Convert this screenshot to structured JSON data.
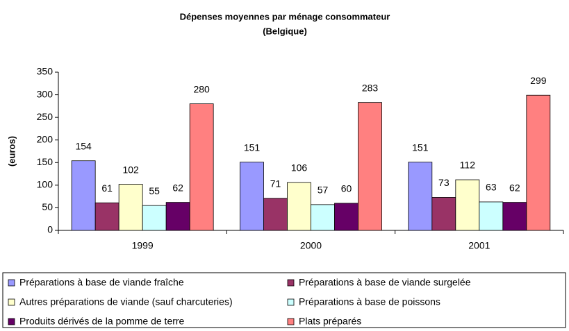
{
  "chart_data": {
    "type": "bar",
    "title": "Dépenses moyennes par ménage consommateur",
    "subtitle": "(Belgique)",
    "y_label": "(euros)",
    "categories": [
      "1999",
      "2000",
      "2001"
    ],
    "series": [
      {
        "name": "Préparations à base de viande fraîche",
        "color": "#9999ff",
        "values": [
          154,
          151,
          151
        ]
      },
      {
        "name": "Préparations à base de viande surgelée",
        "color": "#993366",
        "values": [
          61,
          71,
          73
        ]
      },
      {
        "name": "Autres préparations de viande (sauf charcuteries)",
        "color": "#ffffcc",
        "values": [
          102,
          106,
          112
        ]
      },
      {
        "name": "Préparations à base de poissons",
        "color": "#ccffff",
        "values": [
          55,
          57,
          63
        ]
      },
      {
        "name": "Produits dérivés de la pomme de terre",
        "color": "#660066",
        "values": [
          62,
          60,
          62
        ]
      },
      {
        "name": "Plats préparés",
        "color": "#ff8080",
        "values": [
          280,
          283,
          299
        ]
      }
    ],
    "ylim": [
      0,
      350
    ],
    "yticks": [
      0,
      50,
      100,
      150,
      200,
      250,
      300,
      350
    ],
    "legend": "bottom"
  }
}
